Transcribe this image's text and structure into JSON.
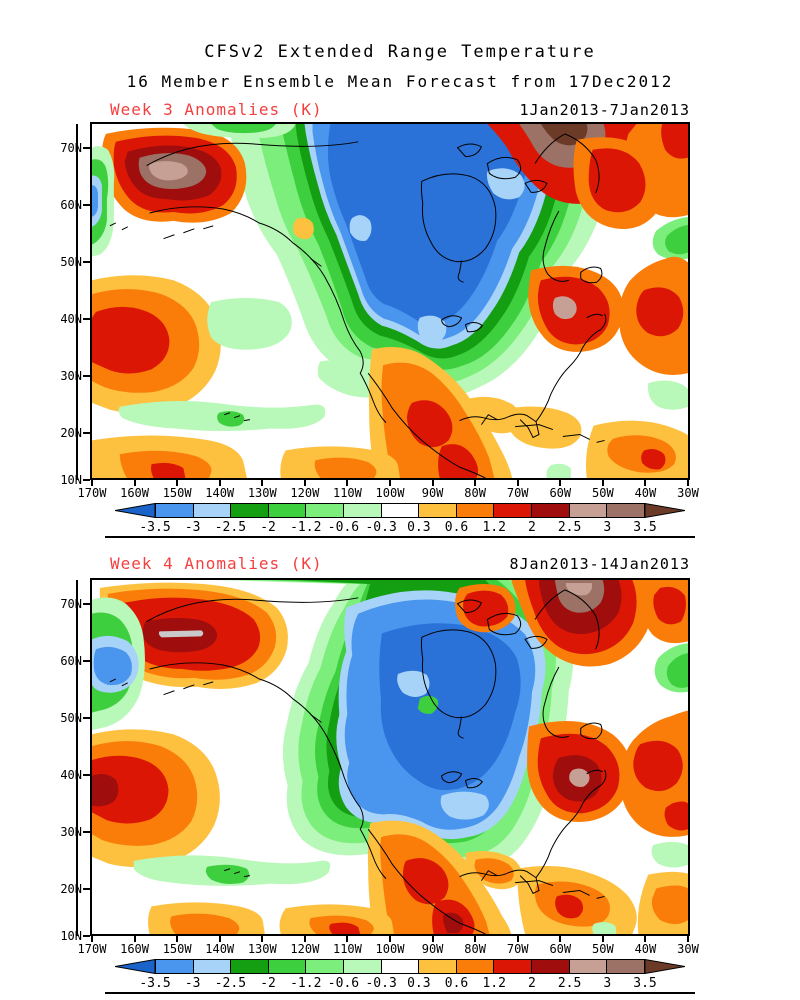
{
  "header": {
    "title": "CFSv2 Extended Range Temperature",
    "subtitle": "16 Member Ensemble Mean Forecast from 17Dec2012"
  },
  "panels": [
    {
      "label": "Week 3 Anomalies (K)",
      "date_range": "1Jan2013-7Jan2013"
    },
    {
      "label": "Week 4 Anomalies (K)",
      "date_range": "8Jan2013-14Jan2013"
    }
  ],
  "axes": {
    "lat_labels": [
      "70N",
      "60N",
      "50N",
      "40N",
      "30N",
      "20N",
      "10N"
    ],
    "lon_labels": [
      "170W",
      "160W",
      "150W",
      "140W",
      "130W",
      "120W",
      "110W",
      "100W",
      "90W",
      "80W",
      "70W",
      "60W",
      "50W",
      "40W",
      "30W"
    ]
  },
  "colorbar": {
    "tick_labels": [
      "-3.5",
      "-3",
      "-2.5",
      "-2",
      "-1.2",
      "-0.6",
      "-0.3",
      "0.3",
      "0.6",
      "1.2",
      "2",
      "2.5",
      "3",
      "3.5"
    ],
    "cell_colors": [
      "#4a96ee",
      "#a8d3f8",
      "#149e12",
      "#3ecf3e",
      "#7bee7b",
      "#b8f8b8",
      "#ffffff",
      "#fdc13f",
      "#fa7d09",
      "#dc1605",
      "#9f0d0d",
      "#c7a095",
      "#9b7265"
    ],
    "arrow_left_color": "#1a63c8",
    "arrow_right_color": "#6b3b28"
  },
  "palette": {
    "blueDark": "#1a63c8",
    "blueDeep": "#2a72d8",
    "blue": "#4a96ee",
    "blueLight": "#a8d3f8",
    "greenDark": "#149e12",
    "green": "#3ecf3e",
    "greenLight": "#7bee7b",
    "greenPale": "#b8f8b8",
    "yellowOrange": "#fdc13f",
    "orange": "#fa7d09",
    "red": "#dc1605",
    "redDark": "#9f0d0d",
    "rose": "#c7a095",
    "brown": "#9b7265",
    "brownDark": "#6b3b28",
    "grey": "#c9c9c9"
  },
  "label_color": "#f43f3f"
}
